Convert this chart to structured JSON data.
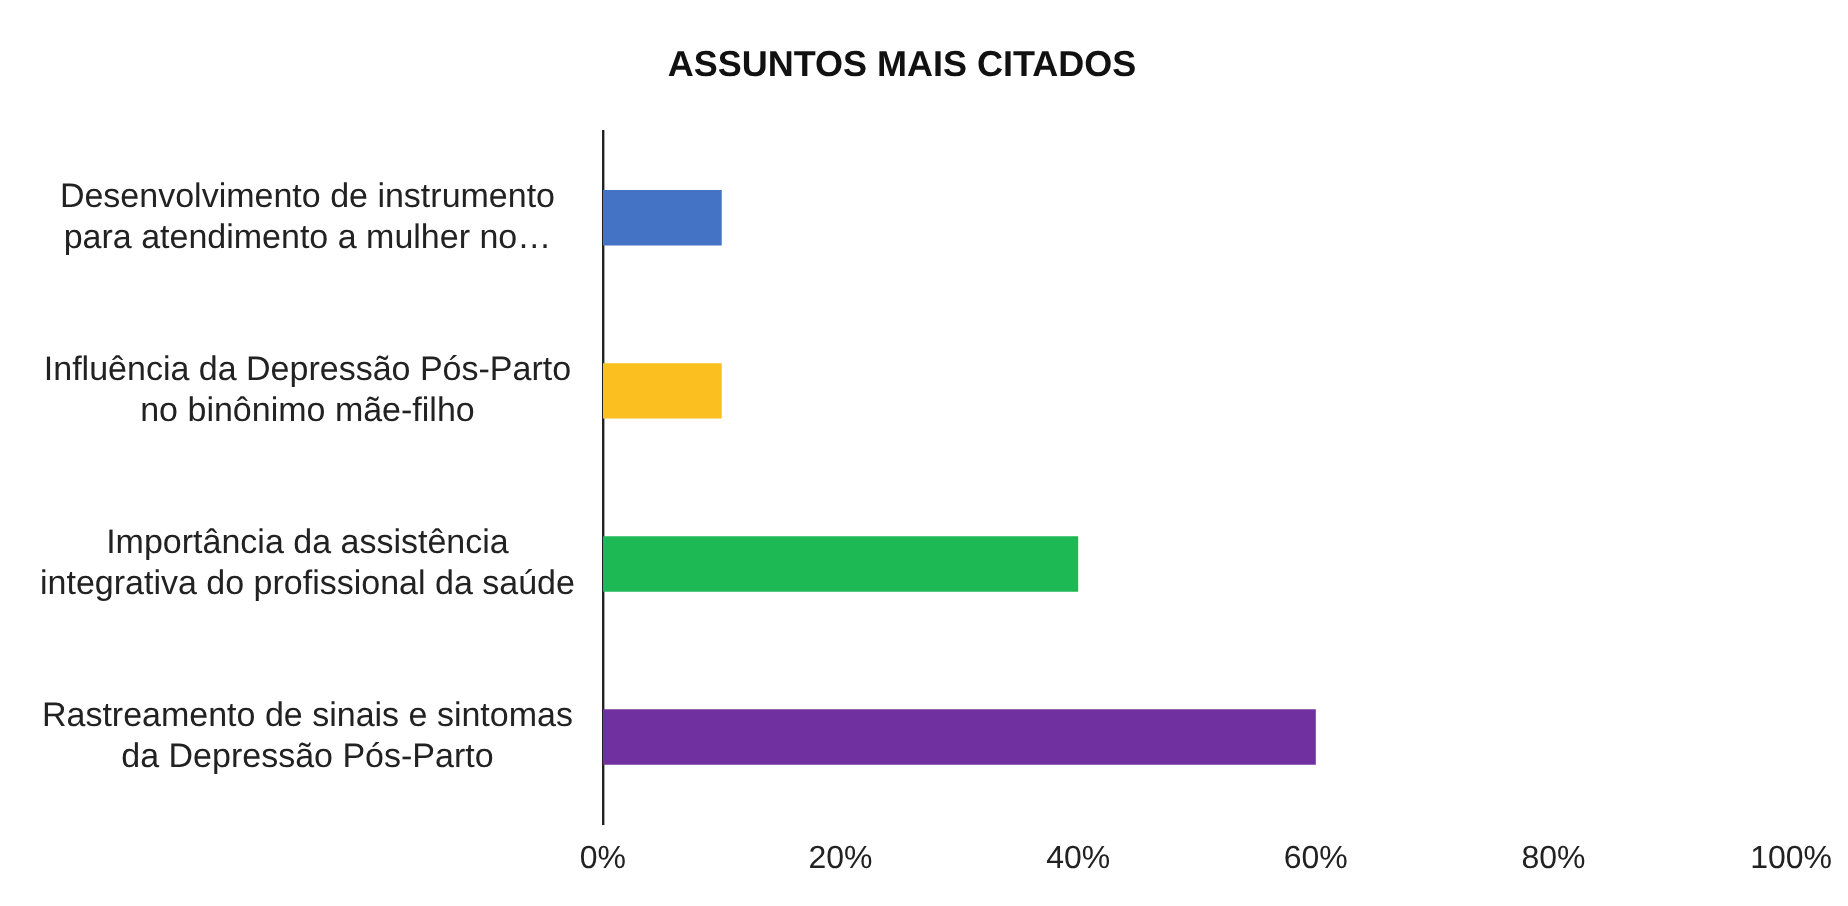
{
  "chart_data": {
    "type": "bar",
    "orientation": "horizontal",
    "title": "ASSUNTOS MAIS CITADOS",
    "categories": [
      "Desenvolvimento de instrumento\npara atendimento a mulher no…",
      "Influência da Depressão Pós-Parto\nno binônimo mãe-filho",
      "Importância da assistência\nintegrativa do profissional da saúde",
      "Rastreamento de sinais e sintomas\nda Depressão Pós-Parto"
    ],
    "values": [
      10,
      10,
      40,
      60
    ],
    "colors": [
      "#4472c4",
      "#fbbf1f",
      "#1db954",
      "#7030a0"
    ],
    "xlim": [
      0,
      100
    ],
    "xticks": [
      {
        "value": 0,
        "label": "0%"
      },
      {
        "value": 20,
        "label": "20%"
      },
      {
        "value": 40,
        "label": "40%"
      },
      {
        "value": 60,
        "label": "60%"
      },
      {
        "value": 80,
        "label": "80%"
      },
      {
        "value": 100,
        "label": "100%"
      }
    ],
    "grid": false,
    "legend": false
  }
}
